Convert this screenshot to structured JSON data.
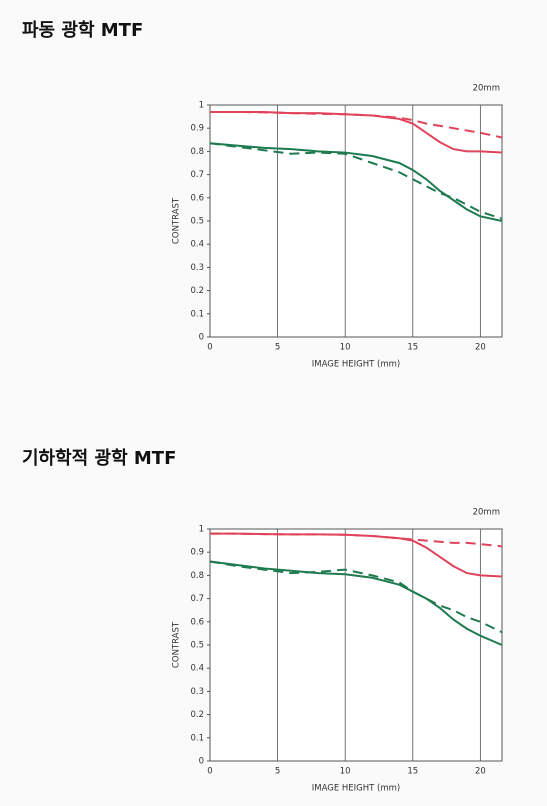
{
  "chart_data": [
    {
      "type": "line",
      "title": "파동 광학 MTF",
      "annotation": "20mm",
      "xlabel": "IMAGE HEIGHT (mm)",
      "ylabel": "CONTRAST",
      "x": [
        0,
        2,
        4,
        6,
        8,
        10,
        12,
        14,
        15,
        16,
        17,
        18,
        19,
        20,
        21.6
      ],
      "series": [
        {
          "color": "#e0435a",
          "dashed": false,
          "values": [
            0.97,
            0.97,
            0.97,
            0.965,
            0.965,
            0.96,
            0.955,
            0.94,
            0.92,
            0.88,
            0.84,
            0.81,
            0.8,
            0.8,
            0.795
          ]
        },
        {
          "color": "#e0435a",
          "dashed": true,
          "values": [
            0.97,
            0.97,
            0.968,
            0.965,
            0.962,
            0.96,
            0.955,
            0.945,
            0.935,
            0.92,
            0.91,
            0.9,
            0.89,
            0.88,
            0.86
          ]
        },
        {
          "color": "#1e7a4f",
          "dashed": false,
          "values": [
            0.835,
            0.825,
            0.815,
            0.81,
            0.8,
            0.795,
            0.78,
            0.75,
            0.72,
            0.68,
            0.63,
            0.59,
            0.55,
            0.52,
            0.5
          ]
        },
        {
          "color": "#1e7a4f",
          "dashed": true,
          "values": [
            0.835,
            0.82,
            0.805,
            0.79,
            0.795,
            0.79,
            0.75,
            0.71,
            0.68,
            0.65,
            0.62,
            0.6,
            0.57,
            0.54,
            0.51
          ]
        }
      ],
      "xlim": [
        0,
        21.6
      ],
      "ylim": [
        0,
        1
      ],
      "xticks": [
        0,
        5,
        10,
        15,
        20
      ],
      "yticks": [
        0,
        0.1,
        0.2,
        0.3,
        0.4,
        0.5,
        0.6,
        0.7,
        0.8,
        0.9,
        1
      ],
      "grid": "x"
    },
    {
      "type": "line",
      "title": "기하학적 광학 MTF",
      "annotation": "20mm",
      "xlabel": "IMAGE HEIGHT (mm)",
      "ylabel": "CONTRAST",
      "x": [
        0,
        2,
        4,
        6,
        8,
        10,
        12,
        14,
        15,
        16,
        17,
        18,
        19,
        20,
        21.6
      ],
      "series": [
        {
          "color": "#e0435a",
          "dashed": false,
          "values": [
            0.98,
            0.98,
            0.978,
            0.977,
            0.977,
            0.975,
            0.97,
            0.96,
            0.95,
            0.92,
            0.88,
            0.84,
            0.81,
            0.8,
            0.795
          ]
        },
        {
          "color": "#e0435a",
          "dashed": true,
          "values": [
            0.98,
            0.98,
            0.978,
            0.977,
            0.977,
            0.975,
            0.97,
            0.96,
            0.955,
            0.95,
            0.945,
            0.94,
            0.94,
            0.935,
            0.925
          ]
        },
        {
          "color": "#1e7a4f",
          "dashed": false,
          "values": [
            0.86,
            0.845,
            0.83,
            0.82,
            0.81,
            0.805,
            0.79,
            0.76,
            0.73,
            0.7,
            0.66,
            0.61,
            0.57,
            0.54,
            0.5
          ]
        },
        {
          "color": "#1e7a4f",
          "dashed": true,
          "values": [
            0.86,
            0.84,
            0.825,
            0.81,
            0.815,
            0.825,
            0.8,
            0.77,
            0.73,
            0.7,
            0.67,
            0.65,
            0.62,
            0.6,
            0.555
          ]
        }
      ],
      "xlim": [
        0,
        21.6
      ],
      "ylim": [
        0,
        1
      ],
      "xticks": [
        0,
        5,
        10,
        15,
        20
      ],
      "yticks": [
        0,
        0.1,
        0.2,
        0.3,
        0.4,
        0.5,
        0.6,
        0.7,
        0.8,
        0.9,
        1
      ],
      "grid": "x"
    }
  ]
}
